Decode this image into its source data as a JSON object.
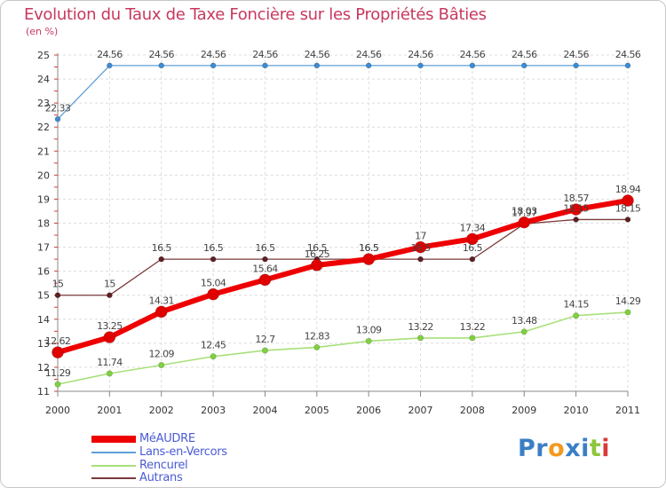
{
  "title": "Evolution du Taux de Taxe Foncière sur les Propriétés Bâties",
  "subtitle": "(en %)",
  "logo": {
    "text": "Proxiti",
    "letters": [
      {
        "ch": "P",
        "color": "#3a7fc4"
      },
      {
        "ch": "r",
        "color": "#3a7fc4"
      },
      {
        "ch": "o",
        "color": "#f29a1f"
      },
      {
        "ch": "x",
        "color": "#3a7fc4"
      },
      {
        "ch": "i",
        "color": "#3a7fc4"
      },
      {
        "ch": "t",
        "color": "#8dc63f"
      },
      {
        "ch": "i",
        "color": "#d83b3b"
      }
    ]
  },
  "chart_data": {
    "type": "line",
    "title": "Evolution du Taux de Taxe Foncière sur les Propriétés Bâties",
    "ylabel": "(en %)",
    "xlabel": "",
    "ylim": [
      11,
      25
    ],
    "yticks": [
      "11",
      "12",
      "13",
      "14",
      "15",
      "16",
      "17",
      "18",
      "19",
      "20",
      "21",
      "22",
      "23",
      "24",
      "25"
    ],
    "categories": [
      "2000",
      "2001",
      "2002",
      "2003",
      "2004",
      "2005",
      "2006",
      "2007",
      "2008",
      "2009",
      "2010",
      "2011"
    ],
    "grid": true,
    "legend_position": "bottom-left",
    "series": [
      {
        "name": "Lans-en-Vercors",
        "color": "#5e9fd8",
        "marker_color": "#3d8bd1",
        "values": [
          22.33,
          24.56,
          24.56,
          24.56,
          24.56,
          24.56,
          24.56,
          24.56,
          24.56,
          24.56,
          24.56,
          24.56
        ],
        "labels": [
          "22.33",
          "24.56",
          "24.56",
          "24.56",
          "24.56",
          "24.56",
          "24.56",
          "24.56",
          "24.56",
          "24.56",
          "24.56",
          "24.56"
        ]
      },
      {
        "name": "Rencurel",
        "color": "#a8e07a",
        "marker_color": "#7fd13f",
        "values": [
          11.29,
          11.74,
          12.09,
          12.45,
          12.7,
          12.83,
          13.09,
          13.22,
          13.22,
          13.48,
          14.15,
          14.29
        ],
        "labels": [
          "11.29",
          "11.74",
          "12.09",
          "12.45",
          "12.7",
          "12.83",
          "13.09",
          "13.22",
          "13.22",
          "13.48",
          "14.15",
          "14.29"
        ]
      },
      {
        "name": "Autrans",
        "color": "#7a3a3a",
        "marker_color": "#5e1f22",
        "values": [
          15,
          15,
          16.5,
          16.5,
          16.5,
          16.5,
          16.5,
          16.5,
          16.5,
          17.97,
          18.15,
          18.15
        ],
        "labels": [
          "15",
          "15",
          "16.5",
          "16.5",
          "16.5",
          "16.5",
          "16.5",
          "16.5",
          "16.5",
          "17.97",
          "18.15",
          "18.15"
        ]
      },
      {
        "name": "MéAUDRE",
        "color": "#ee0000",
        "marker_color": "#e00000",
        "values": [
          12.62,
          13.25,
          14.31,
          15.04,
          15.64,
          16.25,
          16.5,
          17,
          17.34,
          18.03,
          18.57,
          18.94
        ],
        "labels": [
          "12.62",
          "13.25",
          "14.31",
          "15.04",
          "15.64",
          "16.25",
          "16.5",
          "17",
          "17.34",
          "18.03",
          "18.57",
          "18.94"
        ]
      }
    ],
    "legend": [
      {
        "name": "MéAUDRE",
        "color": "#ee0000"
      },
      {
        "name": "Lans-en-Vercors",
        "color": "#5e9fd8"
      },
      {
        "name": "Rencurel",
        "color": "#a8e07a"
      },
      {
        "name": "Autrans",
        "color": "#7a3a3a"
      }
    ]
  }
}
